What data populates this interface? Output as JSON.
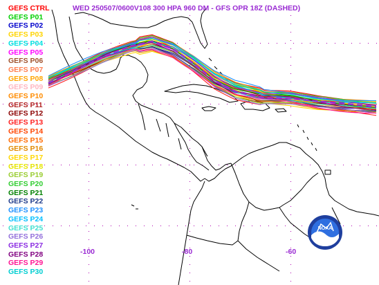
{
  "title": "WED 250507/0600V108  300 HPA 960 DM - GFS OPR 18Z (DASHED)",
  "x_ticks": [
    "-100",
    "-80",
    "-60"
  ],
  "legend": [
    {
      "label": "GEFS CTRL",
      "color": "#ff0000"
    },
    {
      "label": "GEFS P01",
      "color": "#00d000"
    },
    {
      "label": "GEFS P02",
      "color": "#0000cc"
    },
    {
      "label": "GEFS P03",
      "color": "#ffd400"
    },
    {
      "label": "GEFS P04",
      "color": "#00e0e0"
    },
    {
      "label": "GEFS P05",
      "color": "#ff00ff"
    },
    {
      "label": "GEFS P06",
      "color": "#a0522d"
    },
    {
      "label": "GEFS P07",
      "color": "#ff7f50"
    },
    {
      "label": "GEFS P08",
      "color": "#ffa500"
    },
    {
      "label": "GEFS P09",
      "color": "#ffb6c1"
    },
    {
      "label": "GEFS P10",
      "color": "#ff8c00"
    },
    {
      "label": "GEFS P11",
      "color": "#b22222"
    },
    {
      "label": "GEFS P12",
      "color": "#8b0000"
    },
    {
      "label": "GEFS P13",
      "color": "#ff2020"
    },
    {
      "label": "GEFS P14",
      "color": "#ff4500"
    },
    {
      "label": "GEFS P15",
      "color": "#ff6a00"
    },
    {
      "label": "GEFS P16",
      "color": "#e08a00"
    },
    {
      "label": "GEFS P17",
      "color": "#ffd700"
    },
    {
      "label": "GEFS P18",
      "color": "#e6e600"
    },
    {
      "label": "GEFS P19",
      "color": "#9acd32"
    },
    {
      "label": "GEFS P20",
      "color": "#32cd32"
    },
    {
      "label": "GEFS P21",
      "color": "#008000"
    },
    {
      "label": "GEFS P22",
      "color": "#1e3a8a"
    },
    {
      "label": "GEFS P23",
      "color": "#1e90ff"
    },
    {
      "label": "GEFS P24",
      "color": "#00bfff"
    },
    {
      "label": "GEFS P25",
      "color": "#40e0d0"
    },
    {
      "label": "GEFS P26",
      "color": "#9370db"
    },
    {
      "label": "GEFS P27",
      "color": "#8a2be2"
    },
    {
      "label": "GEFS P28",
      "color": "#800080"
    },
    {
      "label": "GEFS P29",
      "color": "#ff1493"
    },
    {
      "label": "GEFS P30",
      "color": "#00ced1"
    }
  ],
  "opr_color": "#9a2bd3",
  "logo": {
    "text": "NOAA"
  }
}
